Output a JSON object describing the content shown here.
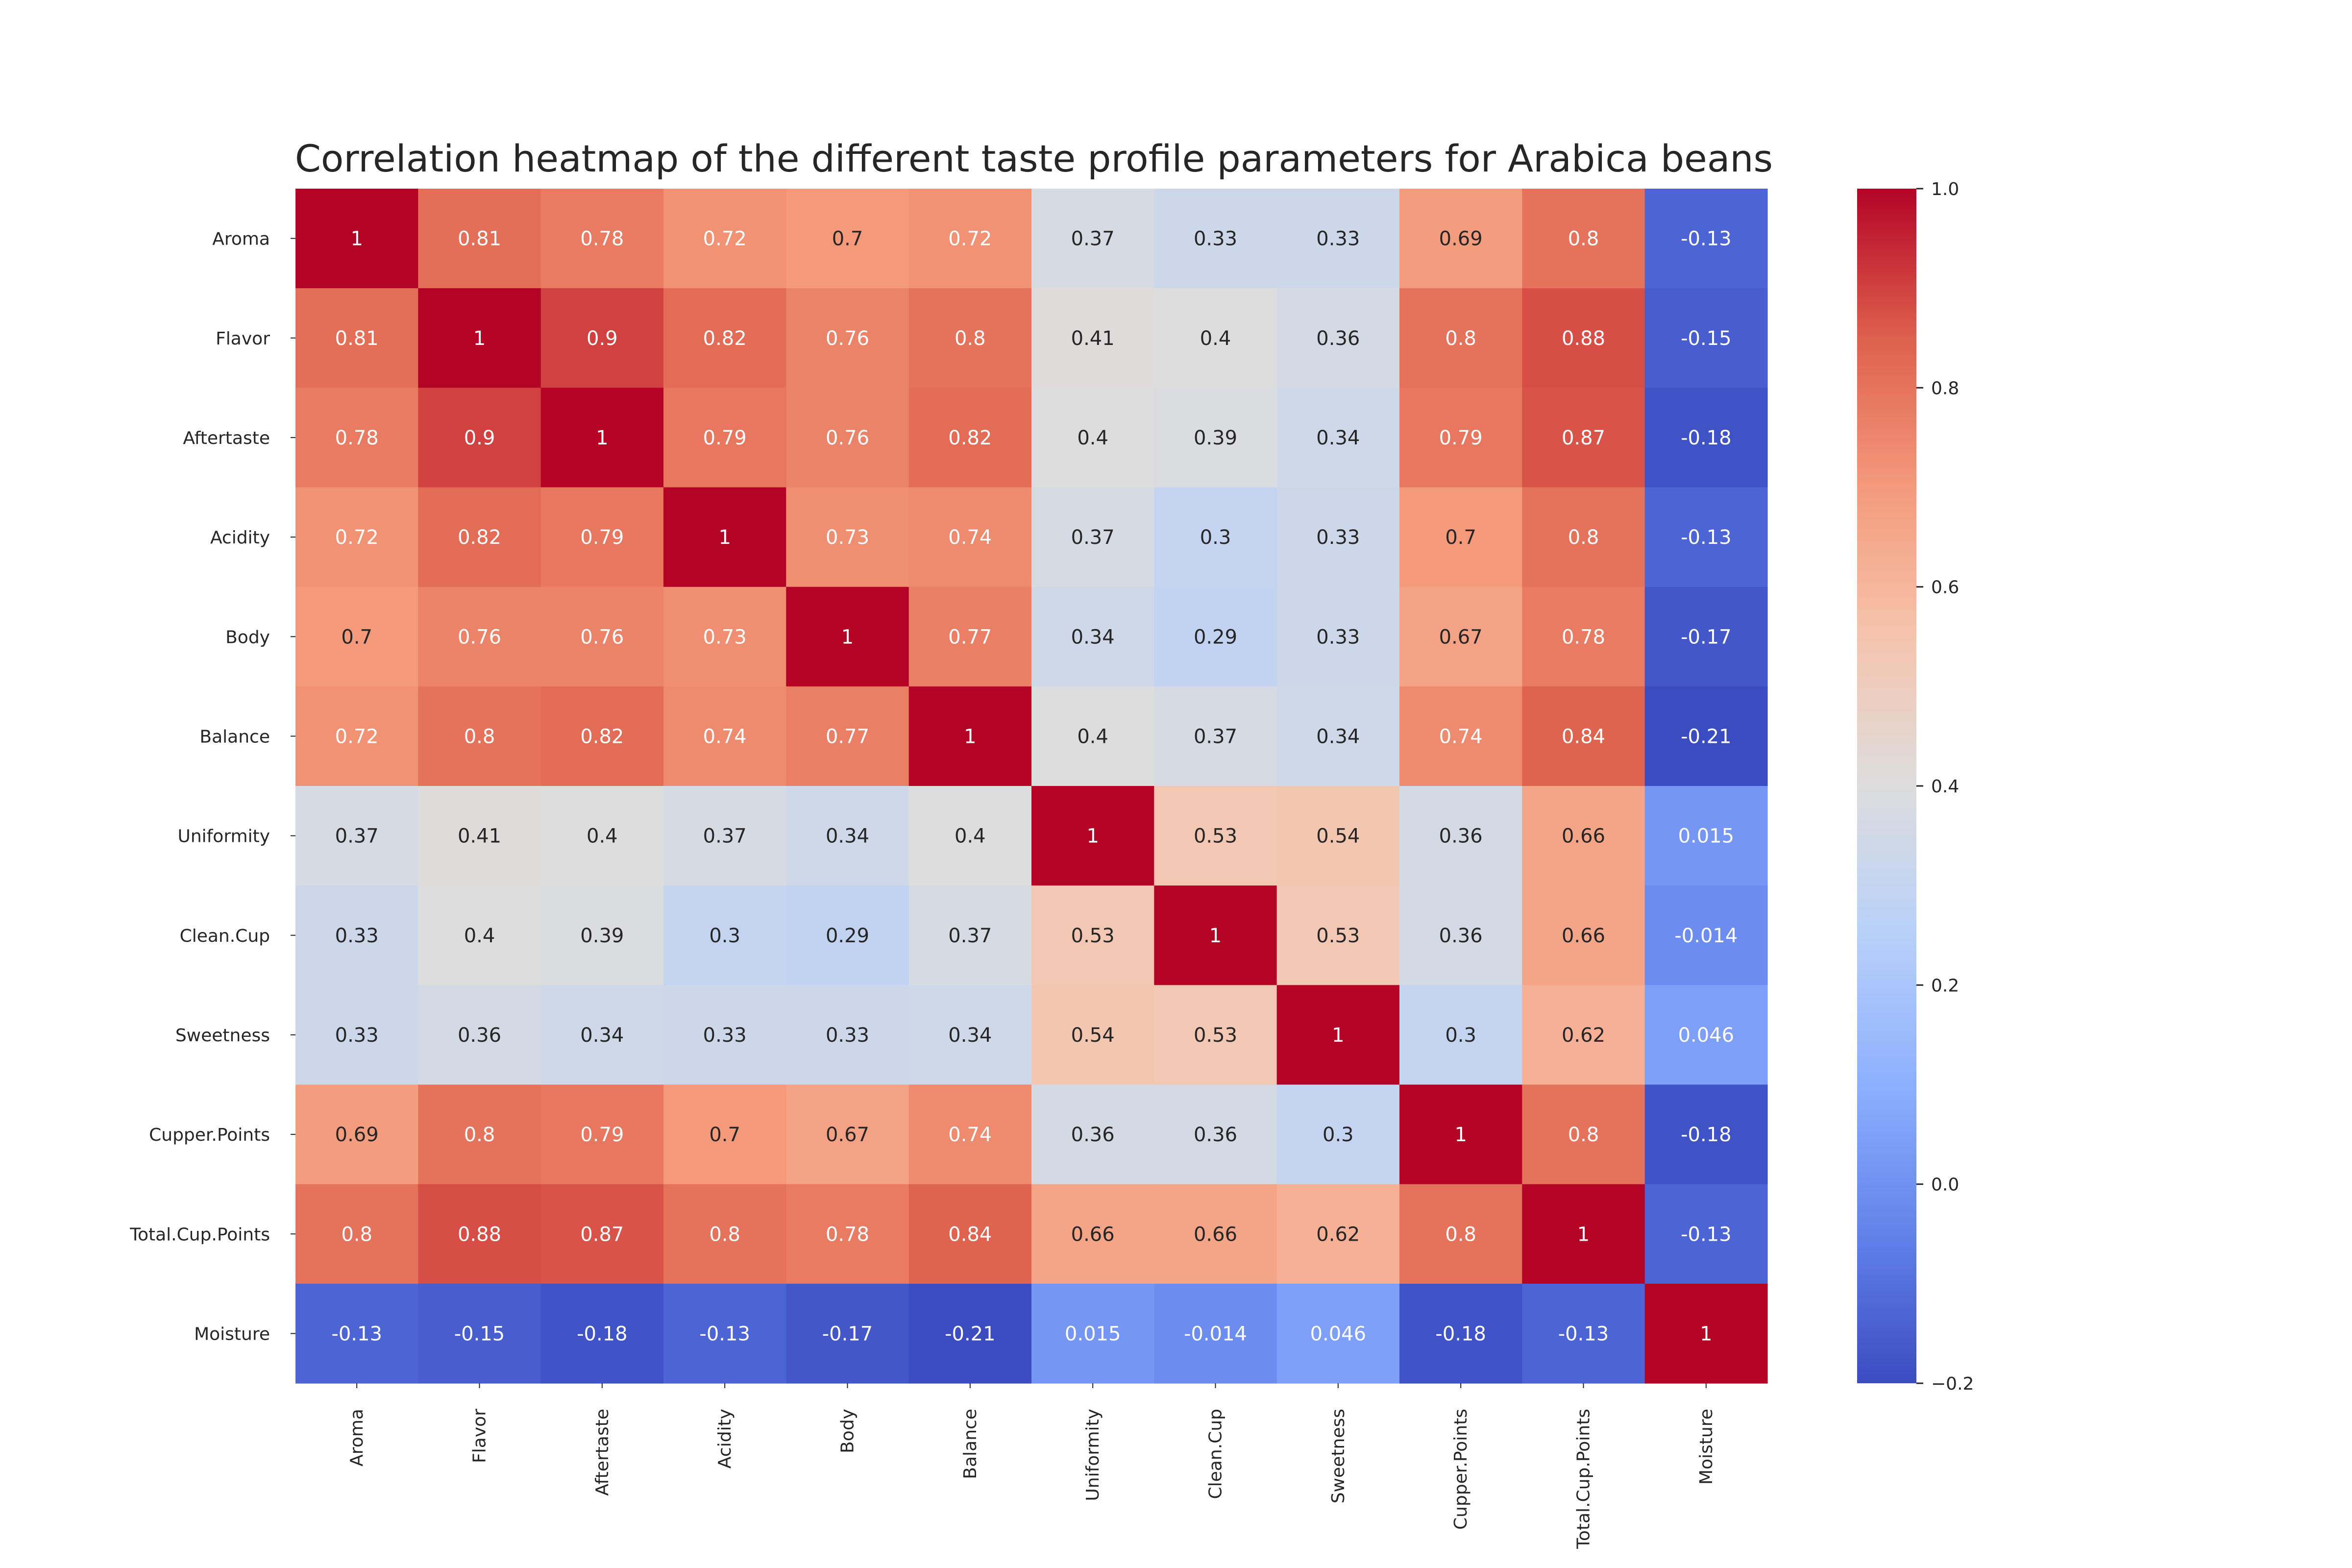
{
  "chart_data": {
    "type": "heatmap",
    "title": "Correlation heatmap of the different taste profile parameters for Arabica beans",
    "xlabel": "",
    "ylabel": "",
    "colormap": "coolwarm",
    "vmin": -0.2,
    "vmax": 1.0,
    "labels": [
      "Aroma",
      "Flavor",
      "Aftertaste",
      "Acidity",
      "Body",
      "Balance",
      "Uniformity",
      "Clean.Cup",
      "Sweetness",
      "Cupper.Points",
      "Total.Cup.Points",
      "Moisture"
    ],
    "values": [
      [
        1,
        0.81,
        0.78,
        0.72,
        0.7,
        0.72,
        0.37,
        0.33,
        0.33,
        0.69,
        0.8,
        -0.13
      ],
      [
        0.81,
        1,
        0.9,
        0.82,
        0.76,
        0.8,
        0.41,
        0.4,
        0.36,
        0.8,
        0.88,
        -0.15
      ],
      [
        0.78,
        0.9,
        1,
        0.79,
        0.76,
        0.82,
        0.4,
        0.39,
        0.34,
        0.79,
        0.87,
        -0.18
      ],
      [
        0.72,
        0.82,
        0.79,
        1,
        0.73,
        0.74,
        0.37,
        0.3,
        0.33,
        0.7,
        0.8,
        -0.13
      ],
      [
        0.7,
        0.76,
        0.76,
        0.73,
        1,
        0.77,
        0.34,
        0.29,
        0.33,
        0.67,
        0.78,
        -0.17
      ],
      [
        0.72,
        0.8,
        0.82,
        0.74,
        0.77,
        1,
        0.4,
        0.37,
        0.34,
        0.74,
        0.84,
        -0.21
      ],
      [
        0.37,
        0.41,
        0.4,
        0.37,
        0.34,
        0.4,
        1,
        0.53,
        0.54,
        0.36,
        0.66,
        0.015
      ],
      [
        0.33,
        0.4,
        0.39,
        0.3,
        0.29,
        0.37,
        0.53,
        1,
        0.53,
        0.36,
        0.66,
        -0.014
      ],
      [
        0.33,
        0.36,
        0.34,
        0.33,
        0.33,
        0.34,
        0.54,
        0.53,
        1,
        0.3,
        0.62,
        0.046
      ],
      [
        0.69,
        0.8,
        0.79,
        0.7,
        0.67,
        0.74,
        0.36,
        0.36,
        0.3,
        1,
        0.8,
        -0.18
      ],
      [
        0.8,
        0.88,
        0.87,
        0.8,
        0.78,
        0.84,
        0.66,
        0.66,
        0.62,
        0.8,
        1,
        -0.13
      ],
      [
        -0.13,
        -0.15,
        -0.18,
        -0.13,
        -0.17,
        -0.21,
        0.015,
        -0.014,
        0.046,
        -0.18,
        -0.13,
        1
      ]
    ],
    "colorbar": {
      "ticks": [
        1.0,
        0.8,
        0.6,
        0.4,
        0.2,
        0.0,
        -0.2
      ],
      "tick_labels": [
        "1.0",
        "0.8",
        "0.6",
        "0.4",
        "0.2",
        "0.0",
        "−0.2"
      ]
    }
  }
}
